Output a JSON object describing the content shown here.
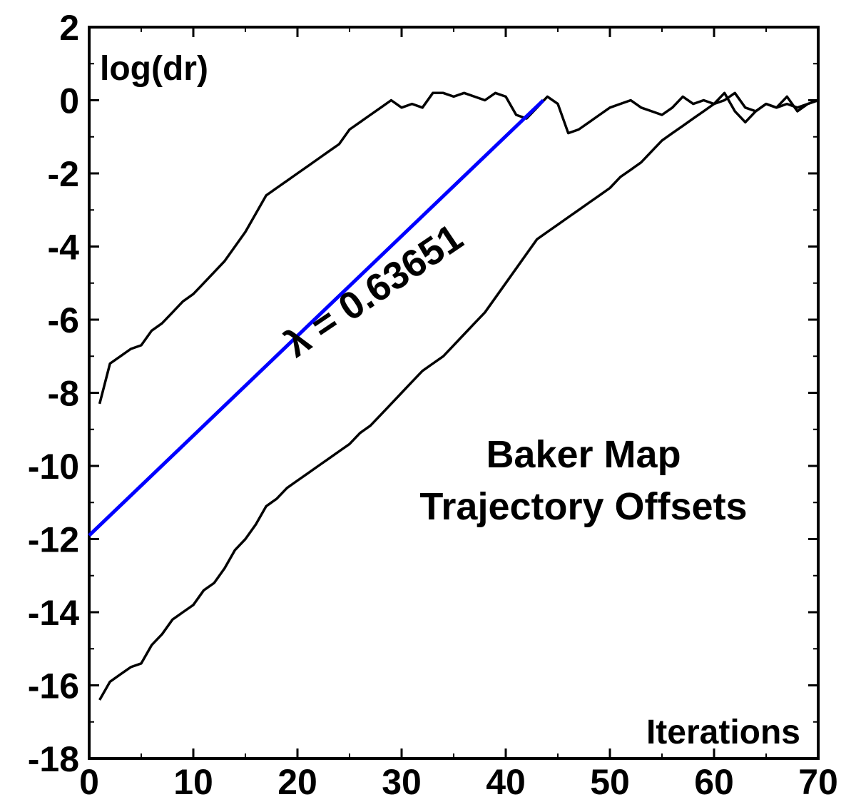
{
  "chart_data": {
    "type": "line",
    "title": "Baker Map\nTrajectory Offsets",
    "xlabel": "Iterations",
    "ylabel": "log(dr)",
    "xlim": [
      0,
      70
    ],
    "ylim": [
      -18,
      2
    ],
    "x_ticks": [
      0,
      10,
      20,
      30,
      40,
      50,
      60,
      70
    ],
    "y_ticks": [
      2,
      0,
      -2,
      -4,
      -6,
      -8,
      -10,
      -12,
      -14,
      -16,
      -18
    ],
    "grid": false,
    "legend": "none",
    "series": [
      {
        "color": "#000000",
        "x": [
          1,
          2,
          3,
          4,
          5,
          6,
          7,
          8,
          9,
          10,
          11,
          12,
          13,
          14,
          15,
          16,
          17,
          18,
          19,
          20,
          21,
          22,
          23,
          24,
          25,
          26,
          27,
          28,
          29,
          30,
          31,
          32,
          33,
          34,
          35,
          36,
          37,
          38,
          39,
          40,
          41,
          42,
          43,
          44,
          45,
          46,
          47,
          48,
          49,
          50,
          51,
          52,
          53,
          54,
          55,
          56,
          57,
          58,
          59,
          60,
          61,
          62,
          63,
          64,
          65,
          66,
          67,
          68,
          69,
          70
        ],
        "y": [
          -8.3,
          -7.2,
          -7.0,
          -6.8,
          -6.7,
          -6.3,
          -6.1,
          -5.8,
          -5.5,
          -5.3,
          -5.0,
          -4.7,
          -4.4,
          -4.0,
          -3.6,
          -3.1,
          -2.6,
          -2.4,
          -2.2,
          -2.0,
          -1.8,
          -1.6,
          -1.4,
          -1.2,
          -0.8,
          -0.6,
          -0.4,
          -0.2,
          0.0,
          -0.2,
          -0.1,
          -0.2,
          0.2,
          0.2,
          0.1,
          0.2,
          0.1,
          0.0,
          0.2,
          0.1,
          -0.4,
          -0.5,
          -0.2,
          0.1,
          -0.1,
          -0.9,
          -0.8,
          -0.6,
          -0.4,
          -0.2,
          -0.1,
          0.0,
          -0.2,
          -0.3,
          -0.4,
          -0.2,
          0.1,
          -0.1,
          0.0,
          -0.1,
          0.0,
          0.2,
          -0.2,
          -0.3,
          -0.1,
          -0.2,
          -0.1,
          -0.2,
          -0.1,
          0.0
        ]
      },
      {
        "color": "#000000",
        "x": [
          1,
          2,
          3,
          4,
          5,
          6,
          7,
          8,
          9,
          10,
          11,
          12,
          13,
          14,
          15,
          16,
          17,
          18,
          19,
          20,
          21,
          22,
          23,
          24,
          25,
          26,
          27,
          28,
          29,
          30,
          31,
          32,
          33,
          34,
          35,
          36,
          37,
          38,
          39,
          40,
          41,
          42,
          43,
          44,
          45,
          46,
          47,
          48,
          49,
          50,
          51,
          52,
          53,
          54,
          55,
          56,
          57,
          58,
          59,
          60,
          61,
          62,
          63,
          64,
          65,
          66,
          67,
          68,
          69,
          70
        ],
        "y": [
          -16.4,
          -15.9,
          -15.7,
          -15.5,
          -15.4,
          -14.9,
          -14.6,
          -14.2,
          -14.0,
          -13.8,
          -13.4,
          -13.2,
          -12.8,
          -12.3,
          -12.0,
          -11.6,
          -11.1,
          -10.9,
          -10.6,
          -10.4,
          -10.2,
          -10.0,
          -9.8,
          -9.6,
          -9.4,
          -9.1,
          -8.9,
          -8.6,
          -8.3,
          -8.0,
          -7.7,
          -7.4,
          -7.2,
          -7.0,
          -6.7,
          -6.4,
          -6.1,
          -5.8,
          -5.4,
          -5.0,
          -4.6,
          -4.2,
          -3.8,
          -3.6,
          -3.4,
          -3.2,
          -3.0,
          -2.8,
          -2.6,
          -2.4,
          -2.1,
          -1.9,
          -1.7,
          -1.4,
          -1.1,
          -0.9,
          -0.7,
          -0.5,
          -0.3,
          -0.1,
          0.2,
          -0.3,
          -0.6,
          -0.3,
          -0.1,
          -0.2,
          0.1,
          -0.3,
          -0.1,
          0.0
        ]
      },
      {
        "color": "#0000ff",
        "x": [
          0,
          43.6
        ],
        "y": [
          -11.9,
          0.0
        ]
      }
    ],
    "annotations": [
      {
        "text": "λ = 0.63651",
        "x": 28,
        "y": -5.5,
        "angle_deg": -34
      }
    ]
  }
}
